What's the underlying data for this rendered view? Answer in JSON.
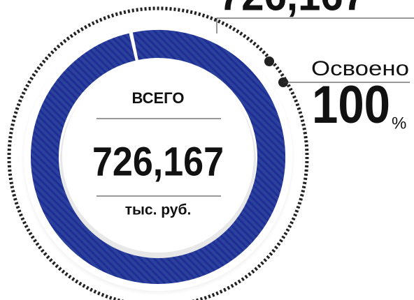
{
  "chart_data": {
    "type": "donut",
    "values": [
      726167
    ],
    "value_labels": [
      "726,167"
    ],
    "color": "#23309a",
    "center_label": "ВСЕГО",
    "total": 726167,
    "total_label": "726,167",
    "unit": "тыс. руб.",
    "progress_label": "Освоено",
    "progress": 100,
    "progress_unit": "%"
  }
}
